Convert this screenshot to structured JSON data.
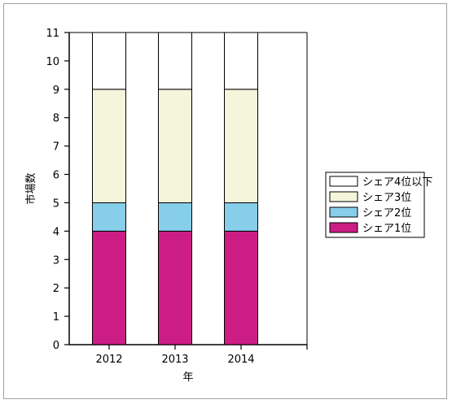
{
  "chart_data": {
    "type": "bar",
    "stacked": true,
    "title": "",
    "xlabel": "年",
    "ylabel": "市場数",
    "ylim": [
      0,
      11
    ],
    "yticks": [
      0,
      1,
      2,
      3,
      4,
      5,
      6,
      7,
      8,
      9,
      10,
      11
    ],
    "categories": [
      "2012",
      "2013",
      "2014"
    ],
    "series": [
      {
        "name": "シェア1位",
        "values": [
          4,
          4,
          4
        ],
        "color": "#cc1d85"
      },
      {
        "name": "シェア2位",
        "values": [
          1,
          1,
          1
        ],
        "color": "#87ceeb"
      },
      {
        "name": "シェア3位",
        "values": [
          4,
          4,
          4
        ],
        "color": "#f5f5dc"
      },
      {
        "name": "シェア4位以下",
        "values": [
          2,
          2,
          2
        ],
        "color": "#ffffff"
      }
    ],
    "legend": {
      "position": "right",
      "order": [
        "シェア4位以下",
        "シェア3位",
        "シェア2位",
        "シェア1位"
      ]
    },
    "grid": false
  }
}
